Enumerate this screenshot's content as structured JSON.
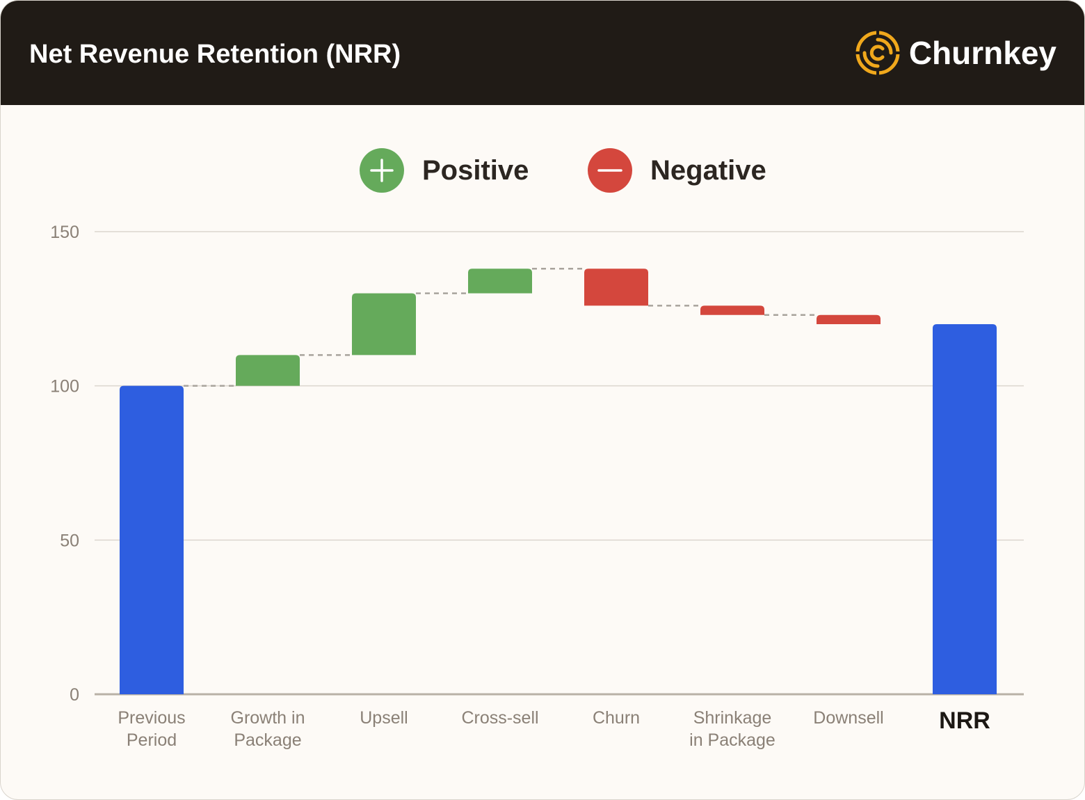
{
  "header": {
    "title": "Net Revenue Retention (NRR)",
    "brand": "Churnkey",
    "brand_icon": "churnkey-logo-icon"
  },
  "legend": [
    {
      "label": "Positive",
      "icon": "plus-icon",
      "color": "#65aa5b"
    },
    {
      "label": "Negative",
      "icon": "minus-icon",
      "color": "#d4473d"
    }
  ],
  "colors": {
    "total": "#2e5ee0",
    "positive": "#65aa5b",
    "negative": "#d4473d",
    "header_bg": "#201b16",
    "brand_accent": "#f0a81c"
  },
  "chart_data": {
    "type": "bar",
    "subtype": "waterfall",
    "title": "Net Revenue Retention (NRR)",
    "xlabel": "",
    "ylabel": "",
    "ylim": [
      0,
      150
    ],
    "yticks": [
      0,
      50,
      100,
      150
    ],
    "grid": true,
    "legend_position": "top-center",
    "bars": [
      {
        "label": "Previous Period",
        "lines": [
          "Previous",
          "Period"
        ],
        "kind": "total",
        "start": 0,
        "end": 100
      },
      {
        "label": "Growth in Package",
        "lines": [
          "Growth in",
          "Package"
        ],
        "kind": "positive",
        "start": 100,
        "end": 110
      },
      {
        "label": "Upsell",
        "lines": [
          "Upsell"
        ],
        "kind": "positive",
        "start": 110,
        "end": 130
      },
      {
        "label": "Cross-sell",
        "lines": [
          "Cross-sell"
        ],
        "kind": "positive",
        "start": 130,
        "end": 138
      },
      {
        "label": "Churn",
        "lines": [
          "Churn"
        ],
        "kind": "negative",
        "start": 138,
        "end": 126
      },
      {
        "label": "Shrinkage in Package",
        "lines": [
          "Shrinkage",
          "in Package"
        ],
        "kind": "negative",
        "start": 126,
        "end": 123
      },
      {
        "label": "Downsell",
        "lines": [
          "Downsell"
        ],
        "kind": "negative",
        "start": 123,
        "end": 120
      },
      {
        "label": "NRR",
        "lines": [
          "NRR"
        ],
        "kind": "total",
        "start": 0,
        "end": 120,
        "emphasis": true
      }
    ]
  }
}
